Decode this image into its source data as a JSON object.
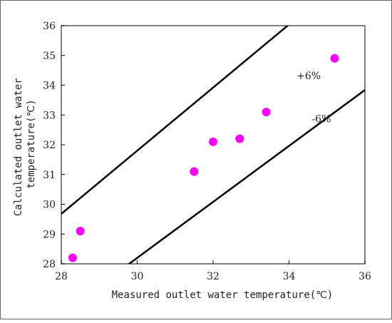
{
  "chart_data": {
    "type": "scatter",
    "title": "",
    "xlabel": "Measured outlet water temperature(℃)",
    "ylabel": "Calculated outlet water temperature(℃)",
    "ylabel_lines": [
      "Calculated outlet water",
      "temperature(℃)"
    ],
    "xlim": [
      28,
      36
    ],
    "ylim": [
      28,
      36
    ],
    "xticks": [
      28,
      30,
      32,
      34,
      36
    ],
    "yticks": [
      28,
      29,
      30,
      31,
      32,
      33,
      34,
      35,
      36
    ],
    "xtick_labels": [
      "28",
      "30",
      "32",
      "34",
      "36"
    ],
    "ytick_labels": [
      "28",
      "29",
      "30",
      "31",
      "32",
      "33",
      "34",
      "35",
      "36"
    ],
    "grid": false,
    "legend": "none",
    "series": [
      {
        "points": [
          {
            "x": 28.3,
            "y": 28.2
          },
          {
            "x": 28.5,
            "y": 29.1
          },
          {
            "x": 31.5,
            "y": 31.1
          },
          {
            "x": 32.0,
            "y": 32.1
          },
          {
            "x": 32.7,
            "y": 32.2
          },
          {
            "x": 33.4,
            "y": 33.1
          },
          {
            "x": 35.2,
            "y": 34.9
          }
        ],
        "color": "#ff00ff"
      }
    ],
    "reference_lines": [
      {
        "label": "+6%",
        "factor": 1.06,
        "label_at": {
          "x": 34.2,
          "y": 34.2
        }
      },
      {
        "label": "-6%",
        "factor": 0.94,
        "label_at": {
          "x": 34.6,
          "y": 32.75
        }
      }
    ],
    "colors": {
      "points": "#ff00ff",
      "lines": "#000000",
      "frame": "#555555"
    }
  }
}
